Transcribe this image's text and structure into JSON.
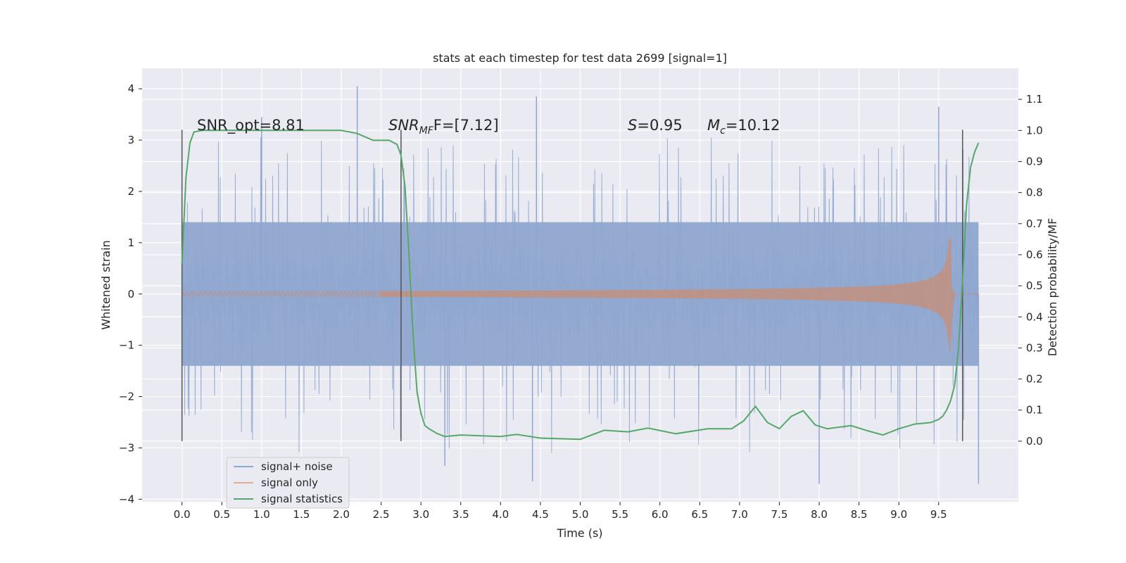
{
  "chart_data": {
    "type": "line",
    "title": "stats at each timestep for test data 2699 [signal=1]",
    "xlabel": "Time (s)",
    "ylabel_left": "Whitened strain",
    "ylabel_right": "Detection probability/MF",
    "xlim": [
      -0.5,
      10.5
    ],
    "ylim_left": [
      -4.05,
      4.4
    ],
    "ylim_right": [
      -0.195,
      1.2
    ],
    "x_ticks": [
      "0.0",
      "0.5",
      "1.0",
      "1.5",
      "2.0",
      "2.5",
      "3.0",
      "3.5",
      "4.0",
      "4.5",
      "5.0",
      "5.5",
      "6.0",
      "6.5",
      "7.0",
      "7.5",
      "8.0",
      "8.5",
      "9.0",
      "9.5"
    ],
    "x_tick_values": [
      0,
      0.5,
      1,
      1.5,
      2,
      2.5,
      3,
      3.5,
      4,
      4.5,
      5,
      5.5,
      6,
      6.5,
      7,
      7.5,
      8,
      8.5,
      9,
      9.5
    ],
    "y_left_ticks": [
      "4",
      "3",
      "2",
      "1",
      "0",
      "−1",
      "−2",
      "−3",
      "−4"
    ],
    "y_left_tick_values": [
      4,
      3,
      2,
      1,
      0,
      -1,
      -2,
      -3,
      -4
    ],
    "y_right_ticks": [
      "1.1",
      "1.0",
      "0.9",
      "0.8",
      "0.7",
      "0.6",
      "0.5",
      "0.4",
      "0.3",
      "0.2",
      "0.1",
      "0.0"
    ],
    "y_right_tick_values": [
      1.1,
      1.0,
      0.9,
      0.8,
      0.7,
      0.6,
      0.5,
      0.4,
      0.3,
      0.2,
      0.1,
      0.0
    ],
    "grid": true,
    "legend_position": "lower-left",
    "series": [
      {
        "name": "signal+ noise",
        "color": "#8fa6cf",
        "kind": "noise",
        "x_range": [
          0,
          10
        ],
        "typical_range": [
          -1.4,
          1.4
        ],
        "peaks": [
          [
            2.2,
            4.05
          ],
          [
            4.45,
            3.85
          ],
          [
            1.0,
            3.45
          ],
          [
            9.5,
            3.65
          ],
          [
            4.4,
            -3.65
          ],
          [
            8.0,
            -3.7
          ],
          [
            10.0,
            -3.7
          ],
          [
            3.3,
            -3.35
          ]
        ]
      },
      {
        "name": "signal only",
        "color": "#dd8452",
        "kind": "chirp",
        "x_range": [
          0,
          10
        ],
        "merger_time": 9.65,
        "peak_amplitude": 1.1
      },
      {
        "name": "signal statistics",
        "color": "#55a868",
        "kind": "line",
        "x": [
          0,
          0.05,
          0.1,
          0.15,
          0.25,
          0.5,
          1,
          1.5,
          2,
          2.2,
          2.4,
          2.6,
          2.7,
          2.75,
          2.8,
          2.85,
          2.9,
          2.95,
          3.0,
          3.05,
          3.1,
          3.2,
          3.3,
          3.5,
          4.0,
          4.2,
          4.5,
          5.0,
          5.3,
          5.6,
          5.85,
          6.2,
          6.6,
          6.9,
          7.05,
          7.2,
          7.35,
          7.5,
          7.65,
          7.8,
          7.95,
          8.1,
          8.4,
          8.6,
          8.8,
          9.0,
          9.2,
          9.4,
          9.5,
          9.55,
          9.6,
          9.65,
          9.7,
          9.75,
          9.8,
          9.85,
          9.9,
          9.95,
          10.0
        ],
        "y": [
          0.57,
          0.85,
          0.96,
          0.995,
          1.0,
          1.0,
          1.0,
          1.0,
          1.0,
          0.99,
          0.968,
          0.968,
          0.955,
          0.92,
          0.82,
          0.6,
          0.35,
          0.16,
          0.09,
          0.05,
          0.04,
          0.025,
          0.015,
          0.02,
          0.015,
          0.022,
          0.01,
          0.006,
          0.035,
          0.03,
          0.042,
          0.024,
          0.04,
          0.04,
          0.065,
          0.112,
          0.06,
          0.04,
          0.08,
          0.098,
          0.052,
          0.04,
          0.05,
          0.034,
          0.02,
          0.04,
          0.055,
          0.06,
          0.07,
          0.08,
          0.1,
          0.13,
          0.18,
          0.3,
          0.52,
          0.76,
          0.88,
          0.93,
          0.96
        ]
      }
    ],
    "vlines": [
      0.0,
      2.75,
      9.8
    ],
    "annotations": [
      {
        "text": "SNR_opt=8.81",
        "x": 0.2,
        "y": 3.2
      },
      {
        "text_main": "SNR",
        "text_sub": "MF",
        "text_rest": "F=[7.12]",
        "x": 2.6,
        "y": 3.2
      },
      {
        "text_italic": "S",
        "text_rest": "=0.95",
        "x": 5.6,
        "y": 3.2
      },
      {
        "text_main": "M",
        "text_sub": "c",
        "text_rest": "=10.12",
        "x": 6.6,
        "y": 3.2
      }
    ]
  }
}
